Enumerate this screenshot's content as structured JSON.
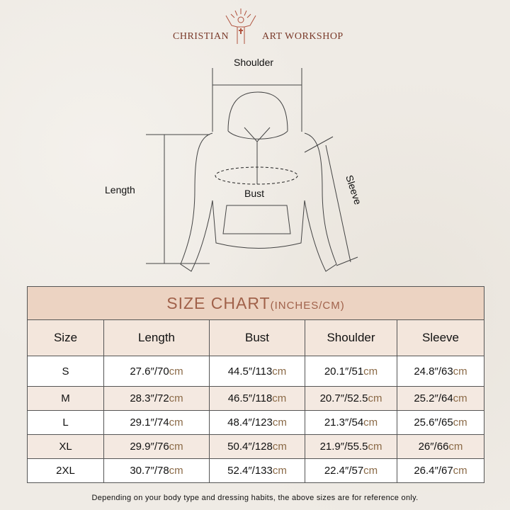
{
  "brand": {
    "left": "CHRISTIAN",
    "right": "ART WORKSHOP"
  },
  "diagram": {
    "shoulder": "Shoulder",
    "length": "Length",
    "bust": "Bust",
    "sleeve": "Sleeve"
  },
  "table": {
    "title": "SIZE CHART",
    "title_unit": "(INCHES/CM)",
    "headers": [
      "Size",
      "Length",
      "Bust",
      "Shoulder",
      "Sleeve"
    ],
    "unit": "cm",
    "rows": [
      {
        "size": "S",
        "cells": [
          "27.6″/70",
          "44.5″/113",
          "20.1″/51",
          "24.8″/63"
        ]
      },
      {
        "size": "M",
        "cells": [
          "28.3″/72",
          "46.5″/118",
          "20.7″/52.5",
          "25.2″/64"
        ]
      },
      {
        "size": "L",
        "cells": [
          "29.1″/74",
          "48.4″/123",
          "21.3″/54",
          "25.6″/65"
        ]
      },
      {
        "size": "XL",
        "cells": [
          "29.9″/76",
          "50.4″/128",
          "21.9″/55.5",
          "26″/66"
        ]
      },
      {
        "size": "2XL",
        "cells": [
          "30.7″/78",
          "52.4″/133",
          "22.4″/57",
          "26.4″/67"
        ]
      }
    ]
  },
  "note": "Depending on your body type and dressing habits, the above sizes are for reference only.",
  "colors": {
    "brand": "#7a3a2a",
    "title_bg": "#ecd3c2",
    "title_text": "#a0614a",
    "cm": "#8b6a47"
  }
}
